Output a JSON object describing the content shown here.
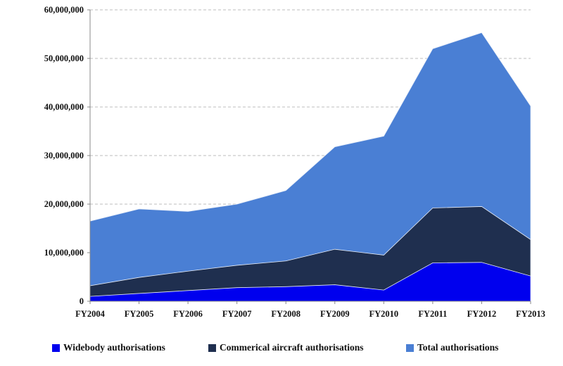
{
  "chart_data": {
    "type": "area",
    "stacked": false,
    "categories": [
      "FY2004",
      "FY2005",
      "FY2006",
      "FY2007",
      "FY2008",
      "FY2009",
      "FY2010",
      "FY2011",
      "FY2012",
      "FY2013"
    ],
    "ylim": [
      0,
      60000000
    ],
    "yticks": [
      0,
      10000000,
      20000000,
      30000000,
      40000000,
      50000000,
      60000000
    ],
    "ytick_labels": [
      "0",
      "10,000,000",
      "20,000,000",
      "30,000,000",
      "40,000,000",
      "50,000,000",
      "60,000,000"
    ],
    "grid": "horizontal dashed",
    "legend_position": "bottom",
    "title": "",
    "xlabel": "",
    "ylabel": "",
    "series": [
      {
        "name": "Total authorisations",
        "color": "#4a7fd4",
        "values": [
          16500000,
          19000000,
          18500000,
          20000000,
          22800000,
          31800000,
          34000000,
          52000000,
          55300000,
          40200000
        ]
      },
      {
        "name": "Commerical aircraft authorisations",
        "color": "#1f2f4f",
        "values": [
          3200000,
          4900000,
          6200000,
          7400000,
          8300000,
          10700000,
          9500000,
          19200000,
          19500000,
          12700000
        ]
      },
      {
        "name": "Widebody authorisations",
        "color": "#0000ee",
        "values": [
          1000000,
          1600000,
          2200000,
          2800000,
          3000000,
          3400000,
          2300000,
          7900000,
          8000000,
          5200000
        ]
      }
    ],
    "legend_order": [
      "Widebody authorisations",
      "Commerical aircraft authorisations",
      "Total authorisations"
    ]
  }
}
